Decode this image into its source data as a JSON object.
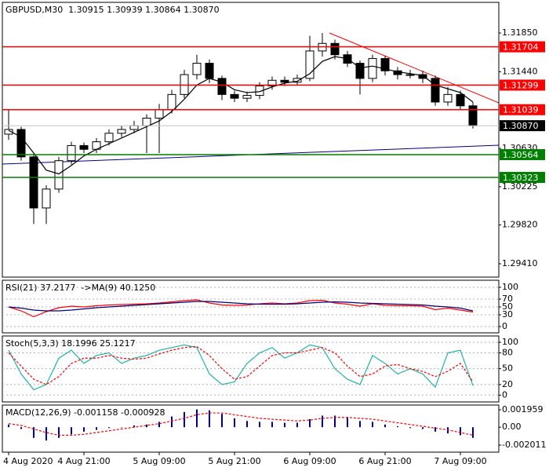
{
  "chart_data": [
    {
      "type": "candlestick",
      "title": "GBPUSD,M30  1.30915 1.30939 1.30864 1.30870",
      "categories": [
        "4 Aug 2020",
        null,
        null,
        null,
        null,
        null,
        "4 Aug 21:00",
        null,
        null,
        null,
        null,
        null,
        "5 Aug 09:00",
        null,
        null,
        null,
        null,
        null,
        "5 Aug 21:00",
        null,
        null,
        null,
        null,
        null,
        "6 Aug 09:00",
        null,
        null,
        null,
        null,
        null,
        "6 Aug 21:00",
        null,
        null,
        null,
        null,
        null,
        "7 Aug 09:00",
        null
      ],
      "open": [
        1.3078,
        1.3083,
        1.3054,
        1.3,
        1.302,
        1.305,
        1.3066,
        1.3062,
        1.307,
        1.3079,
        1.3083,
        1.3087,
        1.3095,
        1.3104,
        1.312,
        1.3141,
        1.3153,
        1.3137,
        1.312,
        1.3116,
        1.3119,
        1.3129,
        1.3135,
        1.3133,
        1.3137,
        1.3166,
        1.3174,
        1.3162,
        1.3153,
        1.3137,
        1.3158,
        1.3145,
        1.3141,
        1.3141,
        1.3137,
        1.3112,
        1.312,
        1.3108
      ],
      "high": [
        1.3104,
        1.3086,
        1.3058,
        1.3024,
        1.3054,
        1.307,
        1.3069,
        1.3074,
        1.3083,
        1.3087,
        1.3092,
        1.3099,
        1.311,
        1.3125,
        1.3146,
        1.3162,
        1.3157,
        1.314,
        1.3124,
        1.3123,
        1.3133,
        1.3139,
        1.3139,
        1.3141,
        1.3182,
        1.3185,
        1.3178,
        1.3166,
        1.3156,
        1.3162,
        1.3161,
        1.3149,
        1.3146,
        1.3145,
        1.314,
        1.3128,
        1.3124,
        1.3112
      ],
      "low": [
        1.3072,
        1.305,
        1.2983,
        1.2983,
        1.3016,
        1.3046,
        1.3058,
        1.3058,
        1.3066,
        1.3075,
        1.3079,
        1.3058,
        1.3058,
        1.31,
        1.3116,
        1.3136,
        1.3132,
        1.3114,
        1.3112,
        1.3112,
        1.3115,
        1.3125,
        1.3129,
        1.313,
        1.3134,
        1.316,
        1.3157,
        1.3149,
        1.312,
        1.3133,
        1.314,
        1.3136,
        1.3137,
        1.3132,
        1.3108,
        1.3108,
        1.3104,
        1.3084
      ],
      "close": [
        1.3083,
        1.3054,
        1.3,
        1.302,
        1.305,
        1.3066,
        1.3062,
        1.307,
        1.3079,
        1.3083,
        1.3087,
        1.3095,
        1.3104,
        1.312,
        1.3141,
        1.3153,
        1.3137,
        1.312,
        1.3116,
        1.3119,
        1.3129,
        1.3135,
        1.3133,
        1.3137,
        1.3166,
        1.3174,
        1.3162,
        1.3153,
        1.3137,
        1.3158,
        1.3145,
        1.3141,
        1.3141,
        1.3137,
        1.3112,
        1.312,
        1.3108,
        1.3087
      ],
      "bull_color": "#ffffff",
      "bear_color": "#000000",
      "ma": {
        "color": "#000000",
        "values": [
          1.3082,
          1.3075,
          1.3058,
          1.304,
          1.3036,
          1.3045,
          1.3055,
          1.3062,
          1.3068,
          1.3074,
          1.308,
          1.3086,
          1.3092,
          1.3102,
          1.3115,
          1.313,
          1.3137,
          1.3133,
          1.3125,
          1.3122,
          1.3123,
          1.3128,
          1.3132,
          1.3134,
          1.3142,
          1.3155,
          1.316,
          1.3158,
          1.3148,
          1.315,
          1.3147,
          1.3144,
          1.3142,
          1.314,
          1.313,
          1.3126,
          1.3122,
          1.3112
        ]
      },
      "levels": [
        {
          "price": 1.31704,
          "color": "#ff0000"
        },
        {
          "price": 1.31299,
          "color": "#ff0000"
        },
        {
          "price": 1.31039,
          "color": "#ff0000"
        },
        {
          "price": 1.30564,
          "color": "#008000"
        },
        {
          "price": 1.30323,
          "color": "#008000"
        }
      ],
      "last_price": {
        "value": 1.3087,
        "label": "1.30870"
      },
      "ylim": [
        1.29269,
        1.32174
      ],
      "yticks": [
        {
          "value": 1.3185,
          "label": "1.31850"
        },
        {
          "value": 1.3144,
          "label": "1.31440"
        },
        {
          "value": 1.3063,
          "label": "1.30630"
        },
        {
          "value": 1.30225,
          "label": "1.30225"
        },
        {
          "value": 1.2982,
          "label": "1.29820"
        },
        {
          "value": 1.2941,
          "label": "1.29410"
        }
      ],
      "grid": false
    },
    {
      "type": "line",
      "title": "RSI(21) 37.2177  ->MA(9) 40.1250",
      "series": [
        {
          "color": "#ff0000",
          "values": [
            50,
            40,
            25,
            38,
            48,
            52,
            50,
            53,
            55,
            56,
            57,
            58,
            60,
            63,
            66,
            68,
            60,
            55,
            54,
            55,
            58,
            60,
            58,
            60,
            66,
            67,
            60,
            57,
            52,
            58,
            54,
            53,
            53,
            52,
            43,
            47,
            42,
            37
          ]
        },
        {
          "color": "#000080",
          "values": [
            50,
            47,
            42,
            40,
            40,
            42,
            45,
            48,
            50,
            52,
            54,
            56,
            58,
            60,
            62,
            64,
            64,
            62,
            60,
            58,
            57,
            57,
            57,
            58,
            60,
            62,
            63,
            62,
            60,
            59,
            58,
            57,
            56,
            55,
            52,
            50,
            47,
            40
          ]
        }
      ],
      "ylim": [
        -16,
        118
      ],
      "yticks": [
        100,
        70,
        50,
        30,
        0
      ],
      "grid": true
    },
    {
      "type": "line",
      "title": "Stoch(5,3,3) 18.1996 25.1217",
      "series": [
        {
          "color": "#20b2aa",
          "values": [
            85,
            40,
            10,
            20,
            70,
            85,
            60,
            75,
            80,
            60,
            70,
            75,
            85,
            90,
            95,
            90,
            40,
            20,
            25,
            60,
            80,
            90,
            70,
            80,
            95,
            90,
            50,
            30,
            20,
            75,
            60,
            40,
            50,
            40,
            15,
            80,
            85,
            18
          ]
        },
        {
          "color": "#ff0000",
          "dashed": true,
          "values": [
            80,
            55,
            30,
            20,
            35,
            60,
            70,
            70,
            75,
            70,
            68,
            70,
            78,
            85,
            90,
            92,
            75,
            50,
            30,
            35,
            55,
            75,
            80,
            80,
            85,
            90,
            80,
            55,
            35,
            40,
            55,
            58,
            50,
            45,
            35,
            45,
            60,
            25
          ]
        }
      ],
      "ylim": [
        -13,
        112
      ],
      "yticks": [
        100,
        80,
        50,
        20,
        0
      ],
      "grid": true
    },
    {
      "type": "macd",
      "title": "MACD(12,26,9) -0.001158 -0.000928",
      "histogram": {
        "color": "#000080",
        "values": [
          0.0003,
          -0.0002,
          -0.0012,
          -0.0015,
          -0.0012,
          -0.0008,
          -0.0005,
          -0.0003,
          -0.0001,
          0.0,
          0.0002,
          0.0003,
          0.0006,
          0.0012,
          0.0017,
          0.002,
          0.0019,
          0.0015,
          0.001,
          0.0007,
          0.0006,
          0.0006,
          0.0005,
          0.0005,
          0.0009,
          0.0013,
          0.0013,
          0.0011,
          0.0007,
          0.0006,
          0.0003,
          0.0001,
          -0.0001,
          -0.0002,
          -0.0005,
          -0.0007,
          -0.0009,
          -0.0012
        ]
      },
      "signal": {
        "color": "#ff0000",
        "dashed": true,
        "values": [
          0.0004,
          0.0002,
          -0.0002,
          -0.0006,
          -0.0009,
          -0.0009,
          -0.0008,
          -0.0006,
          -0.0004,
          -0.0002,
          0.0,
          0.0002,
          0.0004,
          0.0007,
          0.001,
          0.0014,
          0.0016,
          0.0016,
          0.0014,
          0.0012,
          0.001,
          0.0009,
          0.0008,
          0.0007,
          0.0008,
          0.001,
          0.0011,
          0.0011,
          0.001,
          0.0009,
          0.0007,
          0.0005,
          0.0003,
          0.0001,
          -0.0001,
          -0.0003,
          -0.0006,
          -0.0009
        ]
      },
      "ylim": [
        -0.002805,
        0.002488
      ],
      "yticks": [
        0.001959,
        {
          "value": 0,
          "label": "0.00"
        },
        -0.002011
      ],
      "grid": false
    }
  ]
}
